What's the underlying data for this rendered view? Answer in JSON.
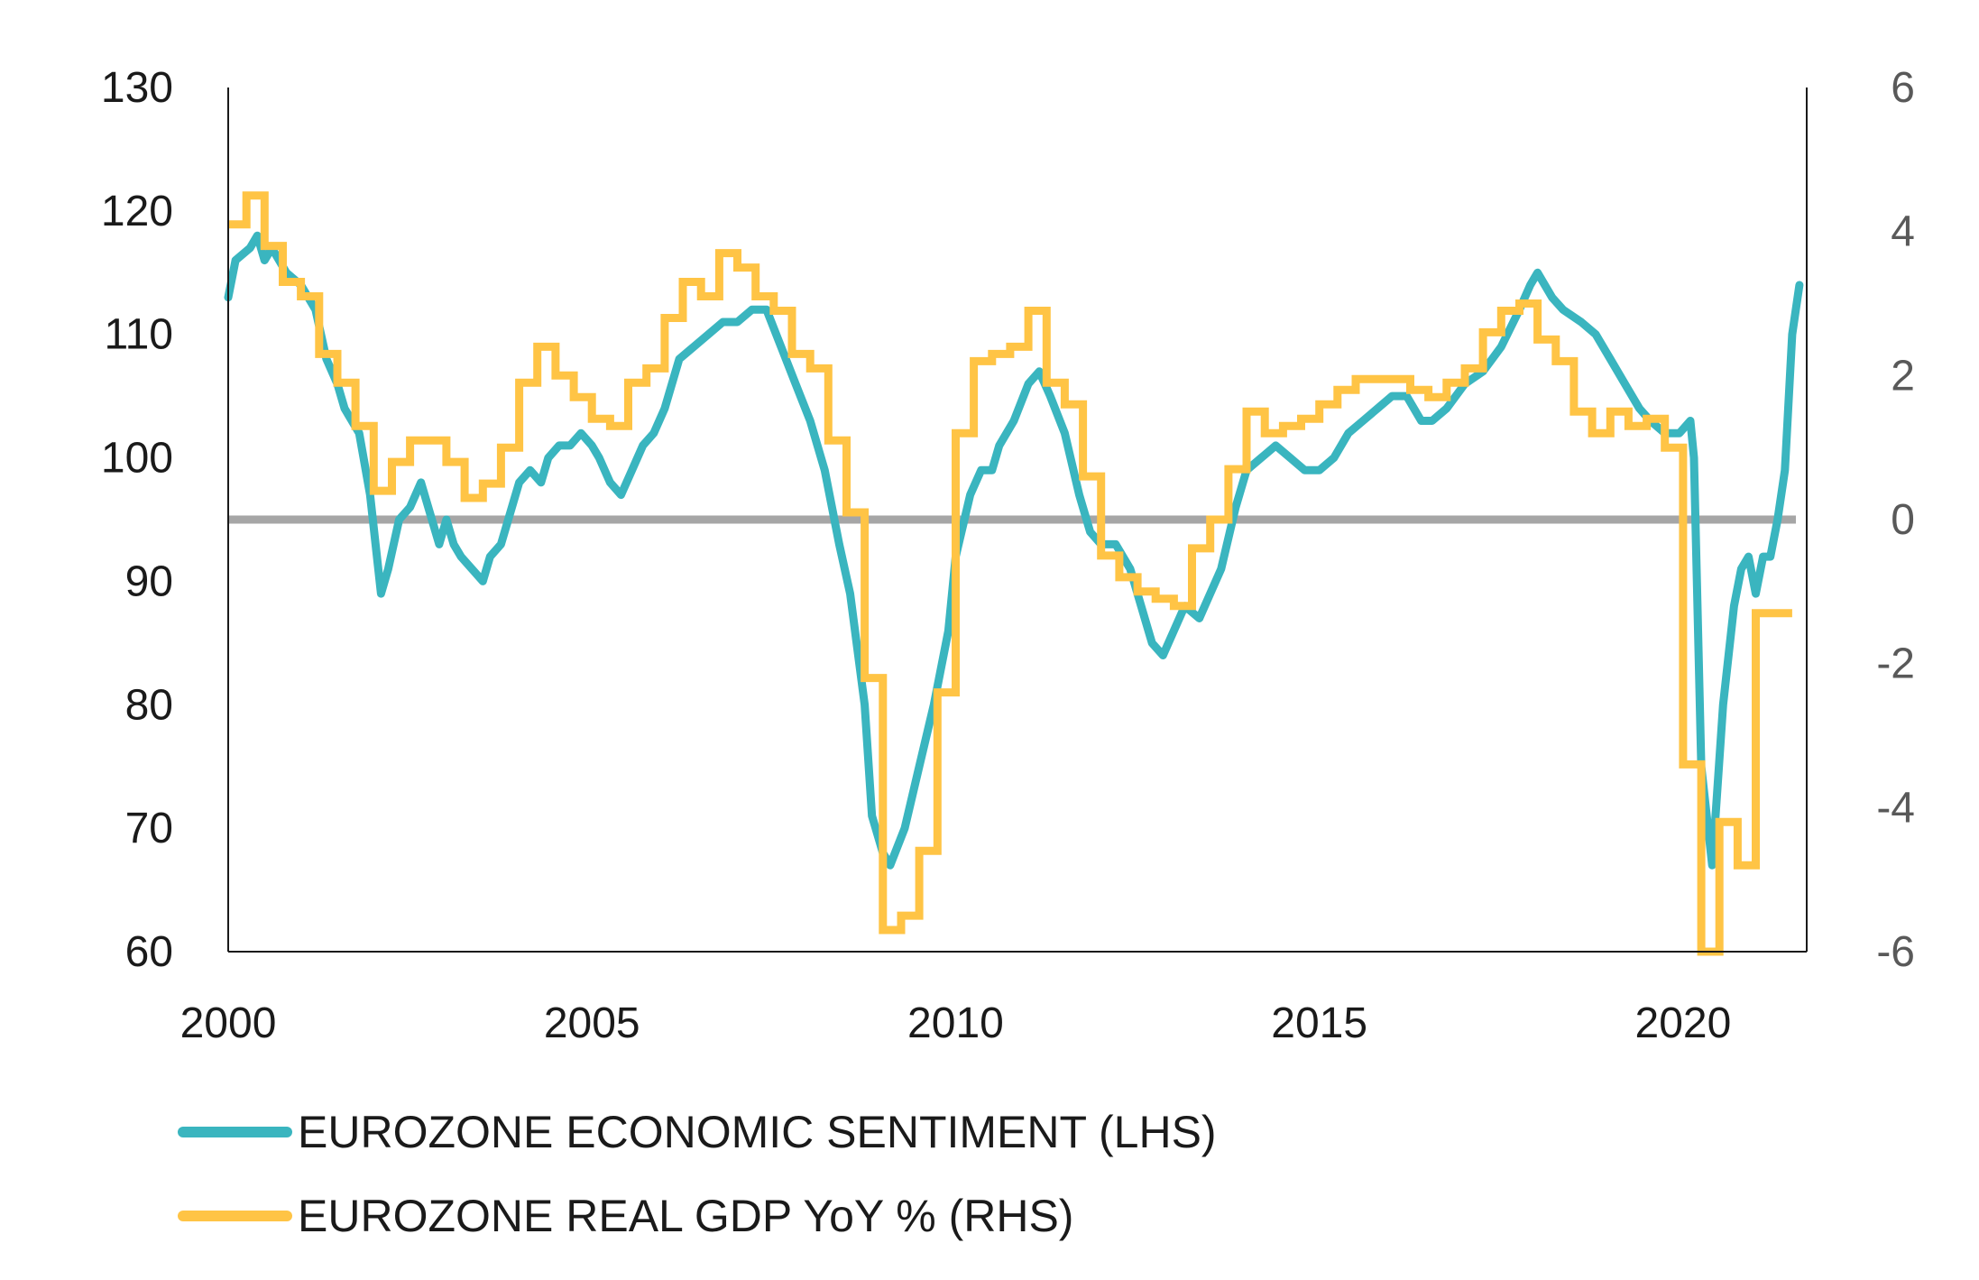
{
  "chart_data": {
    "type": "line",
    "x_axis": {
      "min": 2000,
      "max": 2021.7,
      "ticks": [
        "2000",
        "2005",
        "2010",
        "2015",
        "2020"
      ],
      "tick_values": [
        2000,
        2005,
        2010,
        2015,
        2020
      ]
    },
    "y_left": {
      "min": 60,
      "max": 130,
      "ticks": [
        "60",
        "70",
        "80",
        "90",
        "100",
        "110",
        "120",
        "130"
      ],
      "tick_values": [
        60,
        70,
        80,
        90,
        100,
        110,
        120,
        130
      ]
    },
    "y_right": {
      "min": -6,
      "max": 6,
      "ticks": [
        "-6",
        "-4",
        "-2",
        "0",
        "2",
        "4",
        "6"
      ],
      "tick_values": [
        -6,
        -4,
        -2,
        0,
        2,
        4,
        6
      ]
    },
    "zero_line": {
      "axis": "right",
      "value": 0,
      "color": "#A6A6A6"
    },
    "legend": {
      "position": "bottom-left"
    },
    "series": [
      {
        "name": "EUROZONE ECONOMIC SENTIMENT (LHS)",
        "axis": "left",
        "color": "#3AB5BF",
        "points": [
          [
            2000.0,
            113
          ],
          [
            2000.1,
            116
          ],
          [
            2000.3,
            117
          ],
          [
            2000.4,
            118
          ],
          [
            2000.5,
            116
          ],
          [
            2000.6,
            117
          ],
          [
            2000.8,
            115
          ],
          [
            2001.0,
            114
          ],
          [
            2001.2,
            112
          ],
          [
            2001.35,
            108
          ],
          [
            2001.5,
            106
          ],
          [
            2001.6,
            104
          ],
          [
            2001.8,
            102
          ],
          [
            2001.95,
            97
          ],
          [
            2002.1,
            89
          ],
          [
            2002.2,
            91
          ],
          [
            2002.35,
            95
          ],
          [
            2002.5,
            96
          ],
          [
            2002.65,
            98
          ],
          [
            2002.8,
            95
          ],
          [
            2002.9,
            93
          ],
          [
            2003.0,
            95
          ],
          [
            2003.1,
            93
          ],
          [
            2003.2,
            92
          ],
          [
            2003.35,
            91
          ],
          [
            2003.5,
            90
          ],
          [
            2003.6,
            92
          ],
          [
            2003.75,
            93
          ],
          [
            2003.9,
            96
          ],
          [
            2004.0,
            98
          ],
          [
            2004.15,
            99
          ],
          [
            2004.3,
            98
          ],
          [
            2004.4,
            100
          ],
          [
            2004.55,
            101
          ],
          [
            2004.7,
            101
          ],
          [
            2004.85,
            102
          ],
          [
            2005.0,
            101
          ],
          [
            2005.1,
            100
          ],
          [
            2005.25,
            98
          ],
          [
            2005.4,
            97
          ],
          [
            2005.55,
            99
          ],
          [
            2005.7,
            101
          ],
          [
            2005.85,
            102
          ],
          [
            2006.0,
            104
          ],
          [
            2006.2,
            108
          ],
          [
            2006.4,
            109
          ],
          [
            2006.6,
            110
          ],
          [
            2006.8,
            111
          ],
          [
            2007.0,
            111
          ],
          [
            2007.2,
            112
          ],
          [
            2007.4,
            112
          ],
          [
            2007.6,
            109
          ],
          [
            2007.8,
            106
          ],
          [
            2008.0,
            103
          ],
          [
            2008.2,
            99
          ],
          [
            2008.4,
            93
          ],
          [
            2008.55,
            89
          ],
          [
            2008.75,
            80
          ],
          [
            2008.85,
            71
          ],
          [
            2009.0,
            68
          ],
          [
            2009.1,
            67
          ],
          [
            2009.3,
            70
          ],
          [
            2009.5,
            75
          ],
          [
            2009.7,
            80
          ],
          [
            2009.9,
            86
          ],
          [
            2010.0,
            92
          ],
          [
            2010.2,
            97
          ],
          [
            2010.35,
            99
          ],
          [
            2010.5,
            99
          ],
          [
            2010.6,
            101
          ],
          [
            2010.8,
            103
          ],
          [
            2011.0,
            106
          ],
          [
            2011.15,
            107
          ],
          [
            2011.3,
            105
          ],
          [
            2011.5,
            102
          ],
          [
            2011.7,
            97
          ],
          [
            2011.85,
            94
          ],
          [
            2012.0,
            93
          ],
          [
            2012.2,
            93
          ],
          [
            2012.4,
            91
          ],
          [
            2012.55,
            88
          ],
          [
            2012.7,
            85
          ],
          [
            2012.85,
            84
          ],
          [
            2013.0,
            86
          ],
          [
            2013.15,
            88
          ],
          [
            2013.35,
            87
          ],
          [
            2013.5,
            89
          ],
          [
            2013.65,
            91
          ],
          [
            2013.85,
            96
          ],
          [
            2014.0,
            99
          ],
          [
            2014.2,
            100
          ],
          [
            2014.4,
            101
          ],
          [
            2014.6,
            100
          ],
          [
            2014.8,
            99
          ],
          [
            2015.0,
            99
          ],
          [
            2015.2,
            100
          ],
          [
            2015.4,
            102
          ],
          [
            2015.6,
            103
          ],
          [
            2015.8,
            104
          ],
          [
            2016.0,
            105
          ],
          [
            2016.2,
            105
          ],
          [
            2016.4,
            103
          ],
          [
            2016.55,
            103
          ],
          [
            2016.75,
            104
          ],
          [
            2017.0,
            106
          ],
          [
            2017.25,
            107
          ],
          [
            2017.5,
            109
          ],
          [
            2017.75,
            112
          ],
          [
            2017.9,
            114
          ],
          [
            2018.0,
            115
          ],
          [
            2018.2,
            113
          ],
          [
            2018.35,
            112
          ],
          [
            2018.6,
            111
          ],
          [
            2018.8,
            110
          ],
          [
            2019.0,
            108
          ],
          [
            2019.2,
            106
          ],
          [
            2019.4,
            104
          ],
          [
            2019.55,
            103
          ],
          [
            2019.75,
            102
          ],
          [
            2019.95,
            102
          ],
          [
            2020.1,
            103
          ],
          [
            2020.15,
            100
          ],
          [
            2020.25,
            75
          ],
          [
            2020.4,
            67
          ],
          [
            2020.55,
            80
          ],
          [
            2020.7,
            88
          ],
          [
            2020.8,
            91
          ],
          [
            2020.9,
            92
          ],
          [
            2021.0,
            89
          ],
          [
            2021.1,
            92
          ],
          [
            2021.2,
            92
          ],
          [
            2021.3,
            95
          ],
          [
            2021.4,
            99
          ],
          [
            2021.5,
            110
          ],
          [
            2021.6,
            114
          ]
        ]
      },
      {
        "name": "EUROZONE REAL GDP YoY % (RHS)",
        "axis": "right",
        "color": "#FFC445",
        "steps": [
          [
            2000.0,
            4.1
          ],
          [
            2000.25,
            4.5
          ],
          [
            2000.5,
            3.8
          ],
          [
            2000.75,
            3.3
          ],
          [
            2001.0,
            3.1
          ],
          [
            2001.25,
            2.3
          ],
          [
            2001.5,
            1.9
          ],
          [
            2001.75,
            1.3
          ],
          [
            2002.0,
            0.4
          ],
          [
            2002.25,
            0.8
          ],
          [
            2002.5,
            1.1
          ],
          [
            2002.75,
            1.1
          ],
          [
            2003.0,
            0.8
          ],
          [
            2003.25,
            0.3
          ],
          [
            2003.5,
            0.5
          ],
          [
            2003.75,
            1.0
          ],
          [
            2004.0,
            1.9
          ],
          [
            2004.25,
            2.4
          ],
          [
            2004.5,
            2.0
          ],
          [
            2004.75,
            1.7
          ],
          [
            2005.0,
            1.4
          ],
          [
            2005.25,
            1.3
          ],
          [
            2005.5,
            1.9
          ],
          [
            2005.75,
            2.1
          ],
          [
            2006.0,
            2.8
          ],
          [
            2006.25,
            3.3
          ],
          [
            2006.5,
            3.1
          ],
          [
            2006.75,
            3.7
          ],
          [
            2007.0,
            3.5
          ],
          [
            2007.25,
            3.1
          ],
          [
            2007.5,
            2.9
          ],
          [
            2007.75,
            2.3
          ],
          [
            2008.0,
            2.1
          ],
          [
            2008.25,
            1.1
          ],
          [
            2008.5,
            0.1
          ],
          [
            2008.75,
            -2.2
          ],
          [
            2009.0,
            -5.7
          ],
          [
            2009.25,
            -5.5
          ],
          [
            2009.5,
            -4.6
          ],
          [
            2009.75,
            -2.4
          ],
          [
            2010.0,
            1.2
          ],
          [
            2010.25,
            2.2
          ],
          [
            2010.5,
            2.3
          ],
          [
            2010.75,
            2.4
          ],
          [
            2011.0,
            2.9
          ],
          [
            2011.25,
            1.9
          ],
          [
            2011.5,
            1.6
          ],
          [
            2011.75,
            0.6
          ],
          [
            2012.0,
            -0.5
          ],
          [
            2012.25,
            -0.8
          ],
          [
            2012.5,
            -1.0
          ],
          [
            2012.75,
            -1.1
          ],
          [
            2013.0,
            -1.2
          ],
          [
            2013.25,
            -0.4
          ],
          [
            2013.5,
            0.0
          ],
          [
            2013.75,
            0.7
          ],
          [
            2014.0,
            1.5
          ],
          [
            2014.25,
            1.2
          ],
          [
            2014.5,
            1.3
          ],
          [
            2014.75,
            1.4
          ],
          [
            2015.0,
            1.6
          ],
          [
            2015.25,
            1.8
          ],
          [
            2015.5,
            1.95
          ],
          [
            2015.75,
            1.95
          ],
          [
            2016.0,
            1.95
          ],
          [
            2016.25,
            1.8
          ],
          [
            2016.5,
            1.7
          ],
          [
            2016.75,
            1.9
          ],
          [
            2017.0,
            2.1
          ],
          [
            2017.25,
            2.6
          ],
          [
            2017.5,
            2.9
          ],
          [
            2017.75,
            3.0
          ],
          [
            2018.0,
            2.5
          ],
          [
            2018.25,
            2.2
          ],
          [
            2018.5,
            1.5
          ],
          [
            2018.75,
            1.2
          ],
          [
            2019.0,
            1.5
          ],
          [
            2019.25,
            1.3
          ],
          [
            2019.5,
            1.4
          ],
          [
            2019.75,
            1.0
          ],
          [
            2020.0,
            -3.4
          ],
          [
            2020.25,
            -6.0
          ],
          [
            2020.5,
            -4.2
          ],
          [
            2020.75,
            -4.8
          ],
          [
            2021.0,
            -1.3
          ],
          [
            2021.25,
            -1.3
          ]
        ],
        "end_x": 2021.5,
        "vertical_drops": [
          {
            "x": 2020.25,
            "from": -3.4,
            "to": -6.0
          },
          {
            "x": 2020.5,
            "from": -6.0,
            "to": -4.2
          }
        ]
      }
    ]
  }
}
